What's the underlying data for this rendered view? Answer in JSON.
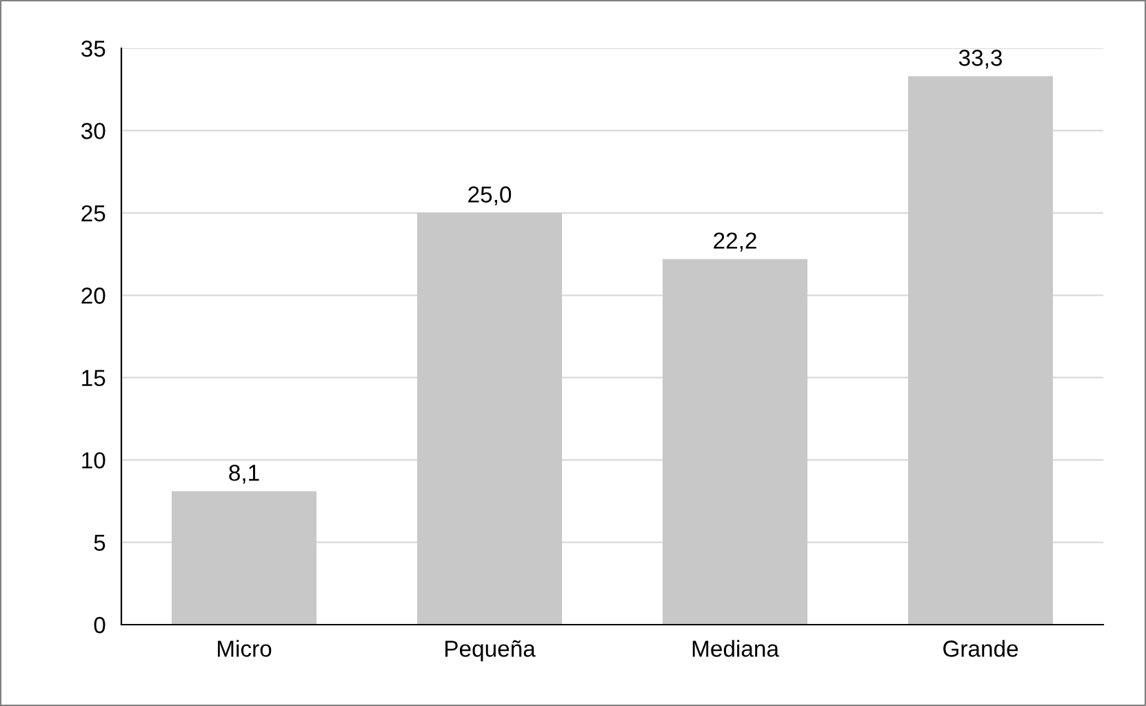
{
  "chart_data": {
    "type": "bar",
    "categories": [
      "Micro",
      "Pequeña",
      "Mediana",
      "Grande"
    ],
    "values": [
      8.1,
      25.0,
      22.2,
      33.3
    ],
    "value_labels": [
      "8,1",
      "25,0",
      "22,2",
      "33,3"
    ],
    "color": "#c8c8c8",
    "ylim": [
      0,
      35
    ],
    "yticks": [
      0,
      5,
      10,
      15,
      20,
      25,
      30,
      35
    ],
    "grid": "y"
  }
}
